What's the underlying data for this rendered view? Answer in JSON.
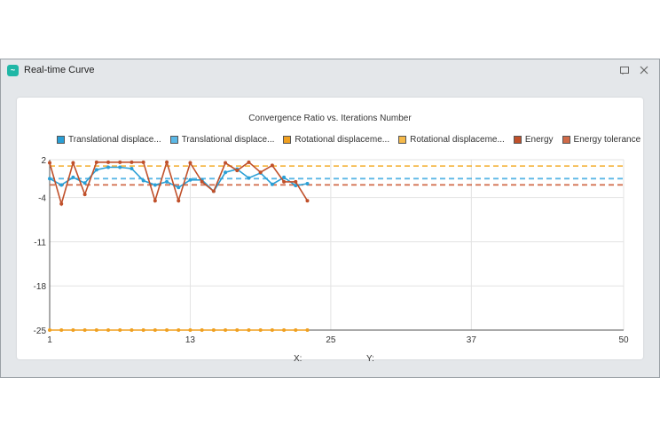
{
  "window": {
    "title": "Real-time Curve",
    "icon": "app-logo-icon"
  },
  "chart_data": {
    "type": "line",
    "title": "Convergence Ratio vs. Iterations Number",
    "xlim": [
      1,
      50
    ],
    "ylim": [
      -25,
      2
    ],
    "x_ticks": [
      "1",
      "13",
      "25",
      "37",
      "50"
    ],
    "y_ticks": [
      "2",
      "-4",
      "-11",
      "-18",
      "-25"
    ],
    "grid": true,
    "legend_position": "top",
    "series": [
      {
        "name": "Translational displace...",
        "color": "#2a9fd6",
        "style": "line-markers",
        "x": [
          1,
          2,
          3,
          4,
          5,
          6,
          7,
          8,
          9,
          10,
          11,
          12,
          13,
          14,
          15,
          16,
          17,
          18,
          19,
          20,
          21,
          22,
          23
        ],
        "y": [
          -1,
          -2,
          -0.8,
          -1.7,
          0.4,
          0.8,
          0.8,
          0.6,
          -1.3,
          -2,
          -1.5,
          -2.4,
          -1.2,
          -1.2,
          -3,
          0,
          0.5,
          -0.9,
          -0.1,
          -1.9,
          -0.8,
          -2.1,
          -1.8
        ]
      },
      {
        "name": "Translational displace...",
        "color": "#5bb8e6",
        "style": "dashed",
        "x": [
          1,
          50
        ],
        "y": [
          -1,
          -1
        ]
      },
      {
        "name": "Rotational displaceme...",
        "color": "#f0a020",
        "style": "line-markers",
        "x": [
          1,
          2,
          3,
          4,
          5,
          6,
          7,
          8,
          9,
          10,
          11,
          12,
          13,
          14,
          15,
          16,
          17,
          18,
          19,
          20,
          21,
          22,
          23
        ],
        "y": [
          -25,
          -25,
          -25,
          -25,
          -25,
          -25,
          -25,
          -25,
          -25,
          -25,
          -25,
          -25,
          -25,
          -25,
          -25,
          -25,
          -25,
          -25,
          -25,
          -25,
          -25,
          -25,
          -25
        ]
      },
      {
        "name": "Rotational displaceme...",
        "color": "#f5b94a",
        "style": "dashed",
        "x": [
          1,
          50
        ],
        "y": [
          1,
          1
        ]
      },
      {
        "name": "Energy",
        "color": "#c0502a",
        "style": "line-markers",
        "x": [
          1,
          2,
          3,
          4,
          5,
          6,
          7,
          8,
          9,
          10,
          11,
          12,
          13,
          14,
          15,
          16,
          17,
          18,
          19,
          20,
          21,
          22,
          23
        ],
        "y": [
          1.5,
          -5,
          1.5,
          -3.5,
          1.6,
          1.6,
          1.6,
          1.6,
          1.6,
          -4.5,
          1.6,
          -4.5,
          1.5,
          -1.5,
          -3,
          1.5,
          0.3,
          1.6,
          0,
          1.1,
          -1.5,
          -1.5,
          -4.5
        ]
      },
      {
        "name": "Energy tolerance",
        "color": "#d06a48",
        "style": "dashed",
        "x": [
          1,
          50
        ],
        "y": [
          -2,
          -2
        ]
      }
    ]
  },
  "coords": {
    "x_label": "X:",
    "y_label": "Y:",
    "x_value": "",
    "y_value": ""
  },
  "icons": {
    "restore": "restore-icon",
    "close": "close-icon"
  }
}
